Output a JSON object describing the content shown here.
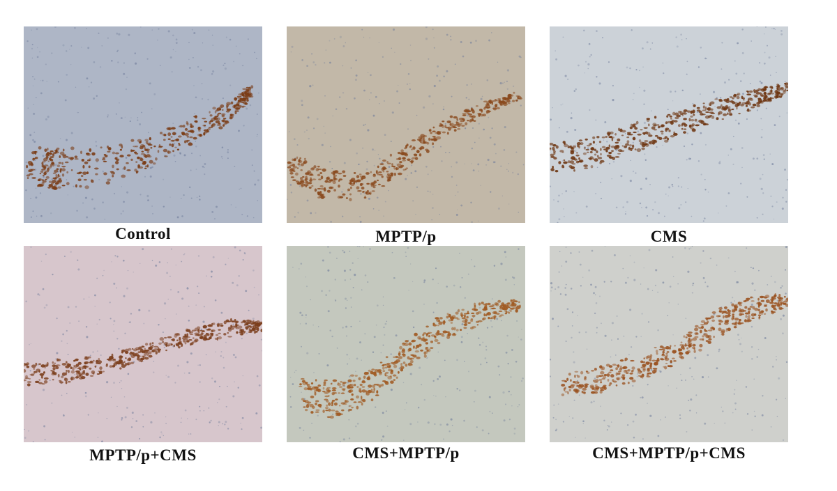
{
  "figure": {
    "panels": [
      {
        "caption": "Control",
        "background": "#aeb6c6",
        "stain": "#7a3b14"
      },
      {
        "caption": "MPTP/p",
        "background": "#c2b8a8",
        "stain": "#8a4a1e"
      },
      {
        "caption": "CMS",
        "background": "#ccd2d8",
        "stain": "#6e3612"
      },
      {
        "caption": "MPTP/p+CMS",
        "background": "#d7c6cc",
        "stain": "#7b3e1c"
      },
      {
        "caption": "CMS+MPTP/p",
        "background": "#c4c8be",
        "stain": "#a05a22"
      },
      {
        "caption": "CMS+MPTP/p+CMS",
        "background": "#cfd0cc",
        "stain": "#9a5220"
      }
    ]
  }
}
